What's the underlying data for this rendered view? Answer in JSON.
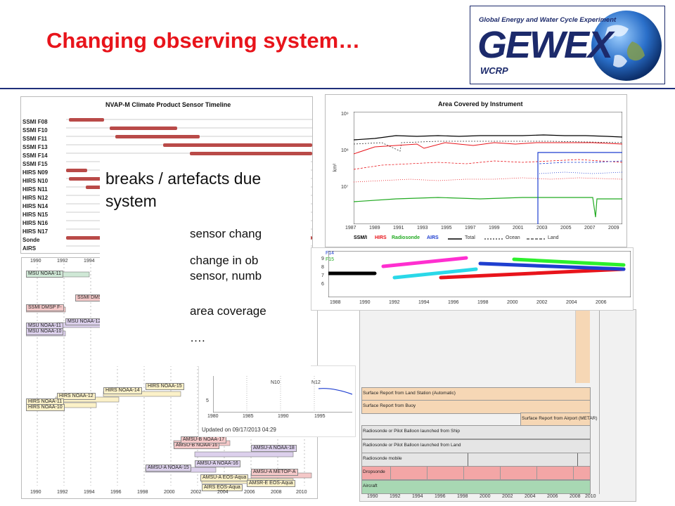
{
  "slide": {
    "title": "Changing observing system…"
  },
  "logo": {
    "tagline": "Global Energy and Water Cycle Experiment",
    "wordmark": "GEWEX",
    "sub": "WCRP",
    "colors": {
      "navy": "#1c2a6b",
      "white": "#ffffff"
    }
  },
  "text_box": {
    "heading_line1": "breaks / artefacts due",
    "heading_line2": "system",
    "bullets": [
      {
        "line1": "sensor chang"
      },
      {
        "line1": "change in ob",
        "line2": "sensor, numb"
      },
      {
        "line1": "area coverage"
      },
      {
        "line1": "…."
      }
    ]
  },
  "timeline_chart": {
    "title": "NVAP-M Climate Product Sensor Timeline",
    "sensors": [
      "SSMI F08",
      "SSMI F10",
      "SSMI F11",
      "SSMI F13",
      "SSMI F14",
      "SSMI F15",
      "HIRS N09",
      "HIRS N10",
      "HIRS N11",
      "HIRS N12",
      "HIRS N14",
      "HIRS N15",
      "HIRS N16",
      "HIRS N17",
      "Sonde",
      "AIRS"
    ],
    "bar_color": "#b94a48"
  },
  "area_chart": {
    "title": "Area Covered by Instrument",
    "ylabel": "km²",
    "y_ticks": [
      "10⁹",
      "10⁸",
      "10⁷"
    ],
    "x_ticks": [
      "1987",
      "1989",
      "1991",
      "1993",
      "1995",
      "1997",
      "1999",
      "2001",
      "2003",
      "2005",
      "2007",
      "2009"
    ],
    "legend": [
      {
        "label": "SSM/I",
        "color": "#000000"
      },
      {
        "label": "HIRS",
        "color": "#e8141b"
      },
      {
        "label": "Radiosonde",
        "color": "#22aa22"
      },
      {
        "label": "AIRS",
        "color": "#1f3fd0"
      },
      {
        "label": "Total",
        "color": "#000000"
      },
      {
        "label": "Ocean",
        "color": "#000000"
      },
      {
        "label": "Land",
        "color": "#000000"
      }
    ]
  },
  "scatter_chart": {
    "y_ticks": [
      "9",
      "8",
      "7",
      "6"
    ],
    "x_ticks": [
      "1988",
      "1990",
      "1992",
      "1994",
      "1996",
      "1998",
      "2000",
      "2002",
      "2004",
      "2006"
    ],
    "legend": [
      {
        "label": "F14",
        "color": "#1f3fd0"
      },
      {
        "label": "F15",
        "color": "#22aa22"
      }
    ]
  },
  "msu_chart": {
    "x_ticks": [
      "1990",
      "1992",
      "1994",
      "1996",
      "1998",
      "2000",
      "2002",
      "2004",
      "2006",
      "2008",
      "2010"
    ],
    "labels": [
      "MSU NOAA-11",
      "SSMI DMSP",
      "SSMI DMSP F-",
      "MSU NOAA-12",
      "MSU NOAA-11",
      "MSU NOAA-10",
      "HIRS NOAA-14",
      "HIRS NOAA-15",
      "HIRS NOAA-12",
      "HIRS NOAA-11",
      "HIRS NOAA-10",
      "AMSU-B NOAA-16",
      "AMSU-B NOAA-17",
      "AMSU-A NOAA-18",
      "AMSU-A NOAA-16",
      "AMSU-A NOAA-15",
      "AMSU-A METOP-A",
      "AMSU-A EOS-Aqua",
      "AMSR-E EOS-Aqua",
      "AIRS EOS-Aqua"
    ]
  },
  "small_chart": {
    "labels": [
      "N10",
      "N12"
    ],
    "y_tick": "5",
    "x_ticks": [
      "1980",
      "1985",
      "1990",
      "1995"
    ],
    "updated": "Updated on 09/17/2013 04:29"
  },
  "obs_chart": {
    "rows": [
      "Surface Report from Land Station (Automatic)",
      "Surface Report from Buoy",
      "Surface Report from Airport (METAR)",
      "Radiosonde or Pilot Balloon launched from Ship",
      "Radiosonde or Pilot Balloon launched from Land",
      "Radiosonde mobile",
      "Dropsonde",
      "Aircraft"
    ],
    "x_ticks": [
      "1990",
      "1992",
      "1994",
      "1996",
      "1998",
      "2000",
      "2002",
      "2004",
      "2006",
      "2008",
      "2010"
    ]
  }
}
